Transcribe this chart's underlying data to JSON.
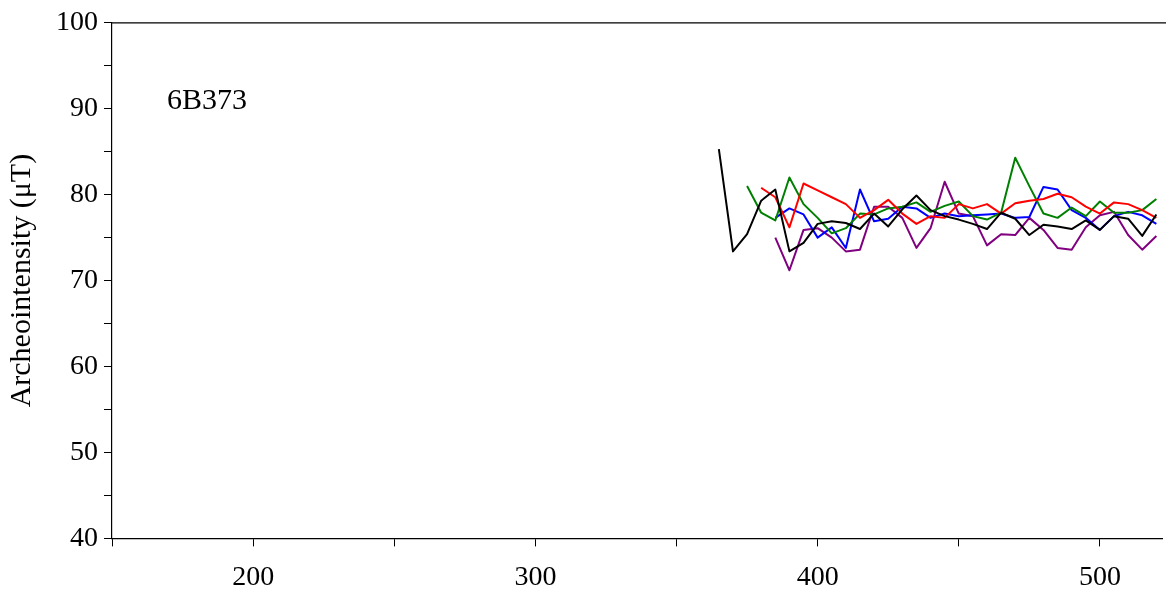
{
  "chart_data": {
    "type": "line",
    "ylabel": "Archeointensity (μT)",
    "annotations": [
      "6B373"
    ],
    "xlim": [
      150,
      522
    ],
    "ylim": [
      40,
      100
    ],
    "xticks": [
      {
        "value": 150,
        "label": null
      },
      200,
      {
        "value": 250,
        "label": null
      },
      300,
      {
        "value": 350,
        "label": null
      },
      400,
      {
        "value": 450,
        "label": null
      },
      500
    ],
    "yticks": [
      40,
      {
        "value": 45,
        "label": null
      },
      50,
      {
        "value": 55,
        "label": null
      },
      60,
      {
        "value": 65,
        "label": null
      },
      70,
      {
        "value": 75,
        "label": null
      },
      80,
      {
        "value": 85,
        "label": null
      },
      90,
      {
        "value": 95,
        "label": null
      },
      100
    ],
    "grid": false,
    "legend": false,
    "marker": "none",
    "line_style": "solid",
    "series": [
      {
        "color": "#000000",
        "x": [
          365,
          370,
          375,
          380,
          385,
          390,
          395,
          400,
          405,
          410,
          415,
          420,
          425,
          430,
          435,
          440,
          445,
          450,
          455,
          460,
          465,
          470,
          475,
          480,
          485,
          490,
          495,
          500,
          505,
          510,
          515,
          520
        ],
        "values": [
          85.3,
          73.4,
          75.4,
          79.3,
          80.6,
          73.4,
          74.4,
          76.6,
          76.9,
          76.7,
          76.0,
          77.8,
          76.3,
          78.3,
          79.9,
          78.2,
          77.5,
          77.1,
          76.6,
          76.0,
          77.9,
          77.2,
          75.3,
          76.5,
          76.3,
          76.0,
          77.0,
          75.9,
          77.5,
          77.2,
          75.2,
          77.7
        ]
      },
      {
        "color": "#ff0000",
        "x": [
          380,
          385,
          390,
          395,
          400,
          405,
          410,
          415,
          420,
          425,
          430,
          435,
          440,
          445,
          450,
          455,
          460,
          465,
          470,
          475,
          480,
          485,
          490,
          495,
          500,
          505,
          510,
          515,
          520
        ],
        "values": [
          80.8,
          79.7,
          76.2,
          81.3,
          80.5,
          79.7,
          78.9,
          77.3,
          78.2,
          79.4,
          77.8,
          76.6,
          77.5,
          77.3,
          78.9,
          78.4,
          78.9,
          77.8,
          79.0,
          79.3,
          79.5,
          80.1,
          79.7,
          78.6,
          77.8,
          79.1,
          78.9,
          78.2,
          77.3
        ]
      },
      {
        "color": "#008000",
        "x": [
          375,
          380,
          385,
          390,
          395,
          400,
          405,
          410,
          415,
          420,
          425,
          430,
          435,
          440,
          445,
          450,
          455,
          460,
          465,
          470,
          475,
          480,
          485,
          490,
          495,
          500,
          505,
          510,
          515,
          520
        ],
        "values": [
          81.0,
          77.9,
          77.0,
          82.0,
          78.9,
          77.3,
          75.5,
          76.1,
          77.8,
          77.7,
          78.4,
          78.6,
          79.1,
          78.0,
          78.7,
          79.2,
          77.5,
          77.1,
          77.9,
          84.3,
          81.0,
          77.8,
          77.3,
          78.5,
          77.5,
          79.2,
          77.9,
          77.9,
          78.2,
          79.5
        ]
      },
      {
        "color": "#0000ff",
        "x": [
          385,
          390,
          395,
          400,
          405,
          410,
          415,
          420,
          425,
          430,
          435,
          440,
          445,
          450,
          455,
          460,
          465,
          470,
          475,
          480,
          485,
          490,
          495,
          500,
          505,
          510,
          515,
          520
        ],
        "values": [
          77.3,
          78.4,
          77.7,
          75.0,
          76.2,
          73.8,
          80.6,
          76.9,
          77.2,
          78.6,
          78.4,
          77.3,
          77.8,
          77.5,
          77.6,
          77.7,
          77.8,
          77.3,
          77.4,
          80.9,
          80.6,
          78.2,
          77.3,
          75.9,
          77.5,
          78.0,
          77.6,
          76.6
        ]
      },
      {
        "color": "#800080",
        "x": [
          385,
          390,
          395,
          400,
          405,
          410,
          415,
          420,
          425,
          430,
          435,
          440,
          445,
          450,
          455,
          460,
          465,
          470,
          475,
          480,
          485,
          490,
          495,
          500,
          505,
          510,
          515,
          520
        ],
        "values": [
          75.0,
          71.2,
          75.9,
          76.1,
          75.0,
          73.4,
          73.6,
          78.6,
          78.6,
          77.3,
          73.8,
          76.1,
          81.5,
          77.8,
          77.5,
          74.1,
          75.4,
          75.3,
          77.3,
          75.9,
          73.8,
          73.6,
          76.2,
          77.6,
          78.0,
          75.3,
          73.6,
          75.2
        ]
      }
    ]
  }
}
